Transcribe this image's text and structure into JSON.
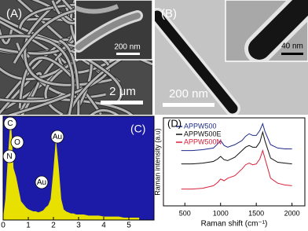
{
  "images": [
    {
      "label": "(A)",
      "inset_scale": "200 nm",
      "scale": "2 μm"
    },
    {
      "label": "(B)",
      "inset_scale": "40 nm",
      "scale": "200 nm"
    }
  ],
  "chart_data": [
    {
      "type": "area",
      "panel_label": "(C)",
      "annotations": [
        "C",
        "O",
        "N",
        "Au",
        "Au"
      ],
      "color": "#e8e000",
      "background": "#1b1ba8",
      "x": [
        0,
        0.1,
        0.2,
        0.3,
        0.4,
        0.5,
        0.6,
        0.7,
        0.8,
        0.9,
        1.0,
        1.1,
        1.2,
        1.3,
        1.4,
        1.5,
        1.6,
        1.7,
        1.8,
        1.9,
        2.0,
        2.1,
        2.2,
        2.3,
        2.4,
        2.5,
        2.6,
        2.7,
        2.8,
        2.9,
        3.0,
        3.2,
        3.4,
        3.6,
        3.8,
        4.0,
        4.2,
        4.4,
        4.6,
        4.8,
        5.0,
        5.2,
        5.4
      ],
      "values": [
        0,
        20,
        60,
        95,
        50,
        42,
        30,
        18,
        15,
        12,
        10,
        9,
        8,
        8,
        7,
        8,
        9,
        12,
        14,
        20,
        45,
        75,
        50,
        20,
        10,
        8,
        7,
        6,
        6,
        5,
        5,
        5,
        4,
        4,
        4,
        3,
        3,
        3,
        3,
        2,
        2,
        2,
        2
      ],
      "xlim": [
        0,
        6
      ],
      "ylim": [
        0,
        100
      ],
      "xticks": [
        0,
        1,
        2,
        3,
        4,
        5
      ]
    },
    {
      "type": "line",
      "panel_label": "(D)",
      "xlabel": "Raman shift (cm⁻¹)",
      "ylabel": "Raman intensity (a.u)",
      "x": [
        450,
        600,
        750,
        900,
        960,
        1000,
        1050,
        1100,
        1200,
        1300,
        1350,
        1400,
        1450,
        1500,
        1550,
        1590,
        1620,
        1700,
        1800,
        1900,
        2000
      ],
      "series": [
        {
          "name": "APPW500",
          "color": "#1f2a8c",
          "values": [
            6.6,
            6.6,
            6.7,
            6.9,
            7.4,
            7.8,
            7.2,
            7.0,
            7.3,
            7.8,
            8.3,
            8.6,
            8.4,
            8.4,
            9.0,
            9.8,
            8.9,
            7.3,
            6.9,
            6.8,
            6.8
          ]
        },
        {
          "name": "APPW500E",
          "color": "#111111",
          "values": [
            5.0,
            5.0,
            5.1,
            5.3,
            5.6,
            5.9,
            5.5,
            5.4,
            5.8,
            6.6,
            7.0,
            7.2,
            7.0,
            7.0,
            7.6,
            8.8,
            7.8,
            5.7,
            5.2,
            5.1,
            5.0
          ]
        },
        {
          "name": "APPW500N",
          "color": "#d8203a",
          "values": [
            2.0,
            2.0,
            2.1,
            2.4,
            2.8,
            3.2,
            3.0,
            3.3,
            3.6,
            4.4,
            4.9,
            5.1,
            4.9,
            5.0,
            5.6,
            6.6,
            5.7,
            3.3,
            2.7,
            2.5,
            2.4
          ]
        }
      ],
      "xlim": [
        200,
        2180
      ],
      "ylim": [
        0,
        10.5
      ],
      "xticks": [
        500,
        1000,
        1500,
        2000
      ]
    }
  ]
}
